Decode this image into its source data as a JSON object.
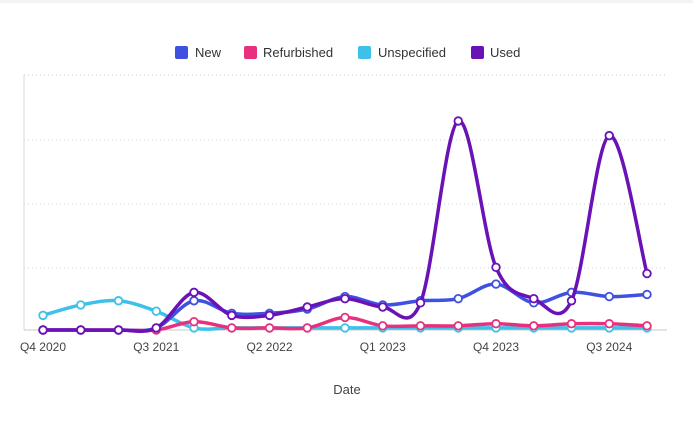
{
  "chart_data": {
    "type": "line",
    "title": "",
    "xlabel": "Date",
    "ylabel": "",
    "x": [
      "Q4 2020",
      "Q1 2021",
      "Q2 2021",
      "Q3 2021",
      "Q4 2021",
      "Q1 2022",
      "Q2 2022",
      "Q3 2022",
      "Q4 2022",
      "Q1 2023",
      "Q2 2023",
      "Q3 2023",
      "Q4 2023",
      "Q1 2024",
      "Q2 2024",
      "Q3 2024",
      "Q4 2024"
    ],
    "x_tick_labels": [
      "Q4 2020",
      "Q3 2021",
      "Q2 2022",
      "Q1 2023",
      "Q4 2023",
      "Q3 2024"
    ],
    "ylim": [
      0,
      100
    ],
    "grid": "horizontal-dotted",
    "legend_position": "top-center",
    "series": [
      {
        "name": "New",
        "color": "#3f51e0",
        "values": [
          0,
          0,
          0,
          1,
          14,
          8,
          8,
          10,
          16,
          12,
          14,
          15,
          22,
          13,
          18,
          16,
          17
        ]
      },
      {
        "name": "Refurbished",
        "color": "#e8317e",
        "values": [
          0,
          0,
          0,
          0,
          4,
          1,
          1,
          1,
          6,
          2,
          2,
          2,
          3,
          2,
          3,
          3,
          2
        ]
      },
      {
        "name": "Unspecified",
        "color": "#3ec0e8",
        "values": [
          7,
          12,
          14,
          9,
          1,
          1,
          1,
          1,
          1,
          1,
          1,
          1,
          1,
          1,
          1,
          1,
          1
        ]
      },
      {
        "name": "Used",
        "color": "#6a12b5",
        "values": [
          0,
          0,
          0,
          1,
          18,
          7,
          7,
          11,
          15,
          11,
          13,
          100,
          30,
          15,
          14,
          93,
          27
        ]
      }
    ]
  }
}
